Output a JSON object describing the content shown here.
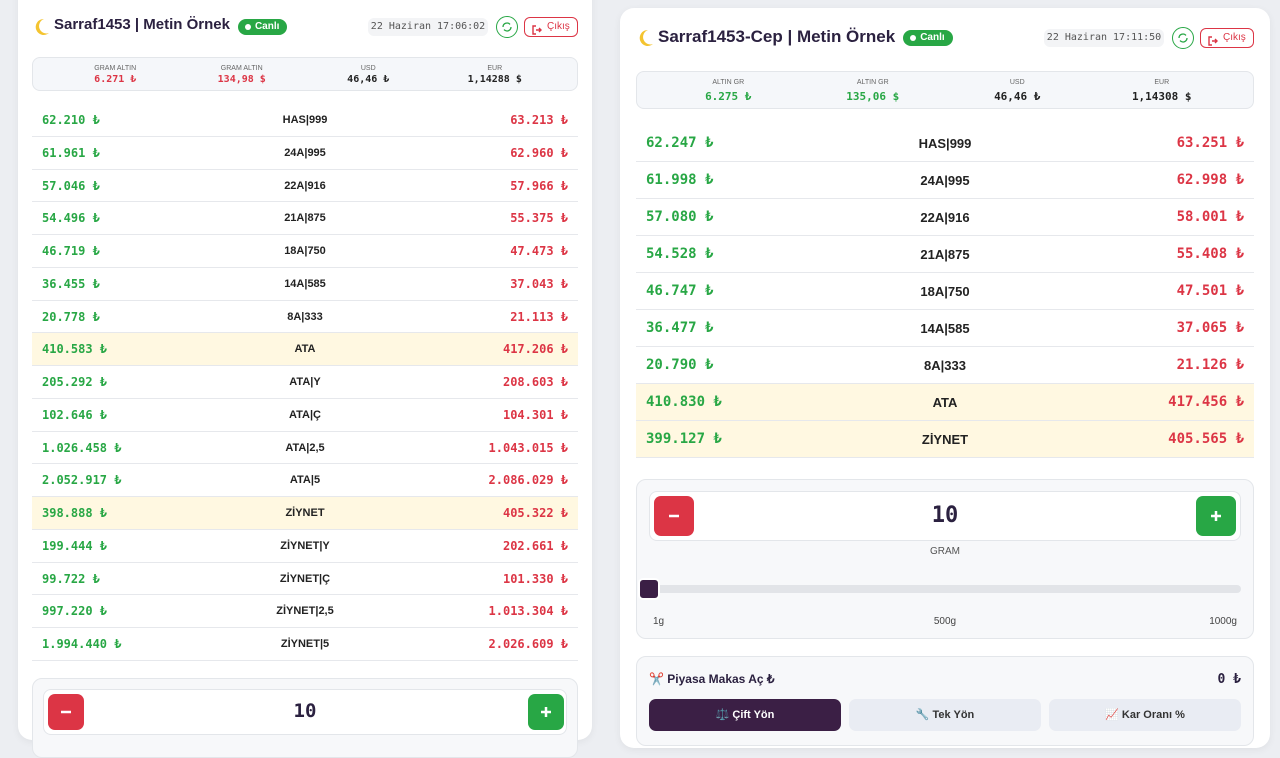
{
  "panels": [
    {
      "header": {
        "title": "Sarraf1453 | Metin Örnek",
        "status": "Canlı",
        "time": "22 Haziran 17:06:02",
        "logout": "Çıkış"
      },
      "ticker": [
        {
          "label": "GRAM ALTIN",
          "value": "6.271 ₺",
          "color": "#dc3545"
        },
        {
          "label": "GRAM ALTIN",
          "value": "134,98 $",
          "color": "#dc3545"
        },
        {
          "label": "USD",
          "value": "46,46 ₺",
          "color": "#222222"
        },
        {
          "label": "EUR",
          "value": "1,14288 $",
          "color": "#222222"
        }
      ],
      "rows": [
        {
          "buy": "62.210 ₺",
          "name": "HAS|999",
          "sell": "63.213 ₺",
          "highlight": false
        },
        {
          "buy": "61.961 ₺",
          "name": "24A|995",
          "sell": "62.960 ₺",
          "highlight": false
        },
        {
          "buy": "57.046 ₺",
          "name": "22A|916",
          "sell": "57.966 ₺",
          "highlight": false
        },
        {
          "buy": "54.496 ₺",
          "name": "21A|875",
          "sell": "55.375 ₺",
          "highlight": false
        },
        {
          "buy": "46.719 ₺",
          "name": "18A|750",
          "sell": "47.473 ₺",
          "highlight": false
        },
        {
          "buy": "36.455 ₺",
          "name": "14A|585",
          "sell": "37.043 ₺",
          "highlight": false
        },
        {
          "buy": "20.778 ₺",
          "name": "8A|333",
          "sell": "21.113 ₺",
          "highlight": false
        },
        {
          "buy": "410.583 ₺",
          "name": "ATA",
          "sell": "417.206 ₺",
          "highlight": true
        },
        {
          "buy": "205.292 ₺",
          "name": "ATA|Y",
          "sell": "208.603 ₺",
          "highlight": false
        },
        {
          "buy": "102.646 ₺",
          "name": "ATA|Ç",
          "sell": "104.301 ₺",
          "highlight": false
        },
        {
          "buy": "1.026.458 ₺",
          "name": "ATA|2,5",
          "sell": "1.043.015 ₺",
          "highlight": false
        },
        {
          "buy": "2.052.917 ₺",
          "name": "ATA|5",
          "sell": "2.086.029 ₺",
          "highlight": false
        },
        {
          "buy": "398.888 ₺",
          "name": "ZİYNET",
          "sell": "405.322 ₺",
          "highlight": true
        },
        {
          "buy": "199.444 ₺",
          "name": "ZİYNET|Y",
          "sell": "202.661 ₺",
          "highlight": false
        },
        {
          "buy": "99.722 ₺",
          "name": "ZİYNET|Ç",
          "sell": "101.330 ₺",
          "highlight": false
        },
        {
          "buy": "997.220 ₺",
          "name": "ZİYNET|2,5",
          "sell": "1.013.304 ₺",
          "highlight": false
        },
        {
          "buy": "1.994.440 ₺",
          "name": "ZİYNET|5",
          "sell": "2.026.609 ₺",
          "highlight": false
        }
      ],
      "quantity": {
        "value": "10"
      }
    },
    {
      "header": {
        "title": "Sarraf1453-Cep | Metin Örnek",
        "status": "Canlı",
        "time": "22 Haziran 17:11:50",
        "logout": "Çıkış"
      },
      "ticker": [
        {
          "label": "ALTIN GR",
          "value": "6.275 ₺",
          "color": "#28a745"
        },
        {
          "label": "ALTIN GR",
          "value": "135,06 $",
          "color": "#28a745"
        },
        {
          "label": "USD",
          "value": "46,46 ₺",
          "color": "#222222"
        },
        {
          "label": "EUR",
          "value": "1,14308 $",
          "color": "#222222"
        }
      ],
      "rows": [
        {
          "buy": "62.247 ₺",
          "name": "HAS|999",
          "sell": "63.251 ₺",
          "highlight": false
        },
        {
          "buy": "61.998 ₺",
          "name": "24A|995",
          "sell": "62.998 ₺",
          "highlight": false
        },
        {
          "buy": "57.080 ₺",
          "name": "22A|916",
          "sell": "58.001 ₺",
          "highlight": false
        },
        {
          "buy": "54.528 ₺",
          "name": "21A|875",
          "sell": "55.408 ₺",
          "highlight": false
        },
        {
          "buy": "46.747 ₺",
          "name": "18A|750",
          "sell": "47.501 ₺",
          "highlight": false
        },
        {
          "buy": "36.477 ₺",
          "name": "14A|585",
          "sell": "37.065 ₺",
          "highlight": false
        },
        {
          "buy": "20.790 ₺",
          "name": "8A|333",
          "sell": "21.126 ₺",
          "highlight": false
        },
        {
          "buy": "410.830 ₺",
          "name": "ATA",
          "sell": "417.456 ₺",
          "highlight": true
        },
        {
          "buy": "399.127 ₺",
          "name": "ZİYNET",
          "sell": "405.565 ₺",
          "highlight": true
        }
      ],
      "quantity": {
        "value": "10",
        "unit": "GRAM",
        "scale": [
          "1g",
          "500g",
          "1000g"
        ]
      },
      "makas": {
        "title": "✂️ Piyasa Makas Aç ₺",
        "value": "0 ₺",
        "tabs": [
          "⚖️ Çift Yön",
          "🔧 Tek Yön",
          "📈 Kar Oranı %"
        ]
      }
    }
  ]
}
